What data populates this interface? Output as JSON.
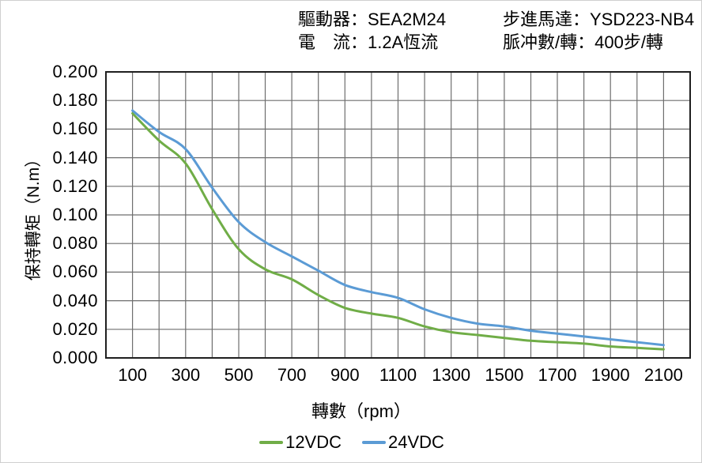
{
  "header": {
    "driver": "驅動器：SEA2M24",
    "motor": "步進馬達：YSD223-NB4",
    "current": "電　流：1.2A恆流",
    "pulses_per_rev": "脈冲數/轉：400步/轉"
  },
  "chart_data": {
    "type": "line",
    "title": "",
    "xlabel": "轉數（rpm）",
    "ylabel": "保持轉矩（N.m）",
    "x": [
      100,
      200,
      300,
      400,
      500,
      600,
      700,
      800,
      900,
      1000,
      1100,
      1200,
      1300,
      1400,
      1500,
      1600,
      1700,
      1800,
      1900,
      2000,
      2100
    ],
    "series": [
      {
        "name": "12VDC",
        "color": "#70AD47",
        "values": [
          0.171,
          0.152,
          0.136,
          0.104,
          0.076,
          0.062,
          0.055,
          0.044,
          0.035,
          0.031,
          0.028,
          0.022,
          0.018,
          0.016,
          0.014,
          0.012,
          0.011,
          0.01,
          0.008,
          0.007,
          0.006
        ]
      },
      {
        "name": "24VDC",
        "color": "#5B9BD5",
        "values": [
          0.173,
          0.158,
          0.146,
          0.119,
          0.095,
          0.081,
          0.071,
          0.061,
          0.051,
          0.046,
          0.042,
          0.034,
          0.028,
          0.024,
          0.022,
          0.019,
          0.017,
          0.015,
          0.013,
          0.011,
          0.009
        ]
      }
    ],
    "xlim": [
      0,
      2200
    ],
    "ylim": [
      0,
      0.2
    ],
    "x_ticks": [
      100,
      300,
      500,
      700,
      900,
      1100,
      1300,
      1500,
      1700,
      1900,
      2100
    ],
    "y_tick_labels": [
      "0.000",
      "0.020",
      "0.040",
      "0.060",
      "0.080",
      "0.100",
      "0.120",
      "0.140",
      "0.160",
      "0.180",
      "0.200"
    ],
    "x_grid_step": 100,
    "y_grid_step": 0.02,
    "grid": true,
    "smooth": true,
    "legend_position": "bottom",
    "gridline_color": "#6e6e6e",
    "border_color": "#1f1f1f"
  }
}
